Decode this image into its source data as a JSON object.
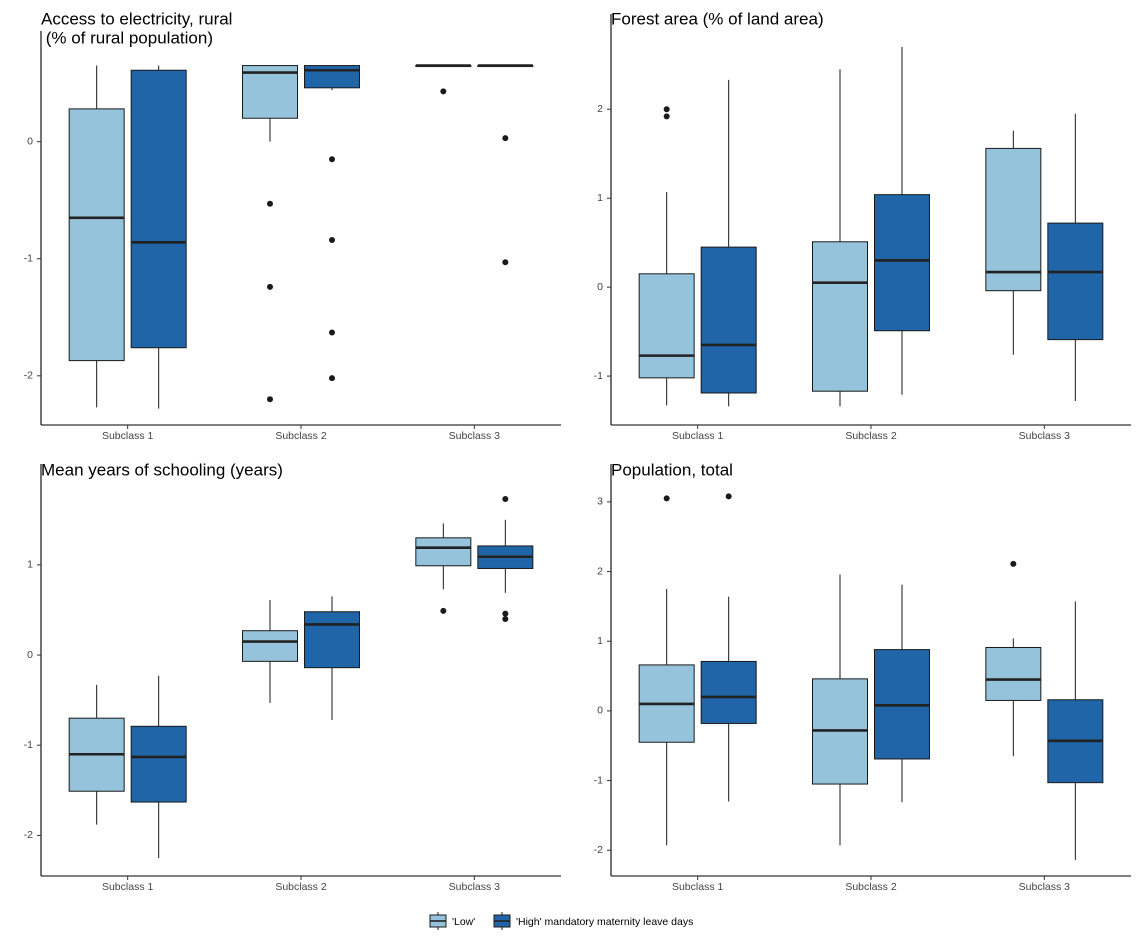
{
  "legend": {
    "title": "",
    "items": [
      {
        "label": "'Low'",
        "color": "#96C3DC"
      },
      {
        "label": "'High' mandatory maternity leave days",
        "color": "#1F65A8"
      }
    ]
  },
  "chart_data": [
    {
      "type": "boxplot",
      "title_lines": [
        "Access to electricity, rural",
        " (% of rural population)"
      ],
      "categories": [
        "Subclass 1",
        "Subclass 2",
        "Subclass 3"
      ],
      "ylim": [
        -2.42,
        0.8
      ],
      "yticks": [
        -2,
        -1,
        0
      ],
      "series": [
        {
          "name": "'Low'",
          "boxes": [
            {
              "whisker_low": -2.27,
              "q1": -1.87,
              "median": -0.65,
              "q3": 0.28,
              "whisker_high": 0.65,
              "outliers": []
            },
            {
              "whisker_low": 0.0,
              "q1": 0.2,
              "median": 0.59,
              "q3": 0.65,
              "whisker_high": 0.65,
              "outliers": [
                -0.53,
                -1.24,
                -2.2
              ]
            },
            {
              "whisker_low": 0.65,
              "q1": 0.65,
              "median": 0.65,
              "q3": 0.65,
              "whisker_high": 0.65,
              "outliers": [
                0.43
              ]
            }
          ]
        },
        {
          "name": "'High' mandatory maternity leave days",
          "boxes": [
            {
              "whisker_low": -2.28,
              "q1": -1.76,
              "median": -0.86,
              "q3": 0.61,
              "whisker_high": 0.65,
              "outliers": []
            },
            {
              "whisker_low": 0.44,
              "q1": 0.46,
              "median": 0.61,
              "q3": 0.65,
              "whisker_high": 0.65,
              "outliers": [
                -0.15,
                -0.84,
                -1.63,
                -2.02
              ]
            },
            {
              "whisker_low": 0.65,
              "q1": 0.65,
              "median": 0.65,
              "q3": 0.65,
              "whisker_high": 0.65,
              "outliers": [
                0.03,
                -1.03
              ]
            }
          ]
        }
      ]
    },
    {
      "type": "boxplot",
      "title_lines": [
        "Forest area (% of land area)"
      ],
      "categories": [
        "Subclass 1",
        "Subclass 2",
        "Subclass 3"
      ],
      "ylim": [
        -1.55,
        2.88
      ],
      "yticks": [
        -1,
        0,
        1,
        2
      ],
      "series": [
        {
          "name": "'Low'",
          "boxes": [
            {
              "whisker_low": -1.33,
              "q1": -1.02,
              "median": -0.77,
              "q3": 0.15,
              "whisker_high": 1.07,
              "outliers": [
                2.0,
                1.92
              ]
            },
            {
              "whisker_low": -1.34,
              "q1": -1.17,
              "median": 0.05,
              "q3": 0.51,
              "whisker_high": 2.45,
              "outliers": []
            },
            {
              "whisker_low": -0.76,
              "q1": -0.04,
              "median": 0.17,
              "q3": 1.56,
              "whisker_high": 1.76,
              "outliers": []
            }
          ]
        },
        {
          "name": "'High' mandatory maternity leave days",
          "boxes": [
            {
              "whisker_low": -1.34,
              "q1": -1.19,
              "median": -0.65,
              "q3": 0.45,
              "whisker_high": 2.33,
              "outliers": []
            },
            {
              "whisker_low": -1.21,
              "q1": -0.49,
              "median": 0.3,
              "q3": 1.04,
              "whisker_high": 2.7,
              "outliers": []
            },
            {
              "whisker_low": -1.28,
              "q1": -0.59,
              "median": 0.17,
              "q3": 0.72,
              "whisker_high": 1.95,
              "outliers": []
            }
          ]
        }
      ]
    },
    {
      "type": "boxplot",
      "title_lines": [
        "Mean years of schooling (years)"
      ],
      "categories": [
        "Subclass 1",
        "Subclass 2",
        "Subclass 3"
      ],
      "ylim": [
        -2.45,
        1.93
      ],
      "yticks": [
        -2,
        -1,
        0,
        1
      ],
      "series": [
        {
          "name": "'Low'",
          "boxes": [
            {
              "whisker_low": -1.88,
              "q1": -1.51,
              "median": -1.1,
              "q3": -0.7,
              "whisker_high": -0.33,
              "outliers": []
            },
            {
              "whisker_low": -0.53,
              "q1": -0.07,
              "median": 0.15,
              "q3": 0.27,
              "whisker_high": 0.61,
              "outliers": []
            },
            {
              "whisker_low": 0.73,
              "q1": 0.99,
              "median": 1.19,
              "q3": 1.3,
              "whisker_high": 1.46,
              "outliers": [
                0.49
              ]
            }
          ]
        },
        {
          "name": "'High' mandatory maternity leave days",
          "boxes": [
            {
              "whisker_low": -2.25,
              "q1": -1.63,
              "median": -1.13,
              "q3": -0.79,
              "whisker_high": -0.23,
              "outliers": []
            },
            {
              "whisker_low": -0.72,
              "q1": -0.14,
              "median": 0.34,
              "q3": 0.48,
              "whisker_high": 0.65,
              "outliers": []
            },
            {
              "whisker_low": 0.69,
              "q1": 0.96,
              "median": 1.09,
              "q3": 1.21,
              "whisker_high": 1.5,
              "outliers": [
                1.73,
                0.46,
                0.4
              ]
            }
          ]
        }
      ]
    },
    {
      "type": "boxplot",
      "title_lines": [
        "Population, total"
      ],
      "categories": [
        "Subclass 1",
        "Subclass 2",
        "Subclass 3"
      ],
      "ylim": [
        -2.37,
        3.3
      ],
      "yticks": [
        -2,
        -1,
        0,
        1,
        2,
        3
      ],
      "series": [
        {
          "name": "'Low'",
          "boxes": [
            {
              "whisker_low": -1.93,
              "q1": -0.45,
              "median": 0.1,
              "q3": 0.66,
              "whisker_high": 1.75,
              "outliers": [
                3.05
              ]
            },
            {
              "whisker_low": -1.93,
              "q1": -1.05,
              "median": -0.28,
              "q3": 0.46,
              "whisker_high": 1.96,
              "outliers": []
            },
            {
              "whisker_low": -0.65,
              "q1": 0.15,
              "median": 0.45,
              "q3": 0.91,
              "whisker_high": 1.04,
              "outliers": [
                2.11
              ]
            }
          ]
        },
        {
          "name": "'High' mandatory maternity leave days",
          "boxes": [
            {
              "whisker_low": -1.3,
              "q1": -0.18,
              "median": 0.2,
              "q3": 0.71,
              "whisker_high": 1.64,
              "outliers": [
                3.08
              ]
            },
            {
              "whisker_low": -1.31,
              "q1": -0.69,
              "median": 0.08,
              "q3": 0.88,
              "whisker_high": 1.81,
              "outliers": []
            },
            {
              "whisker_low": -2.14,
              "q1": -1.03,
              "median": -0.43,
              "q3": 0.16,
              "whisker_high": 1.57,
              "outliers": []
            }
          ]
        }
      ]
    }
  ]
}
